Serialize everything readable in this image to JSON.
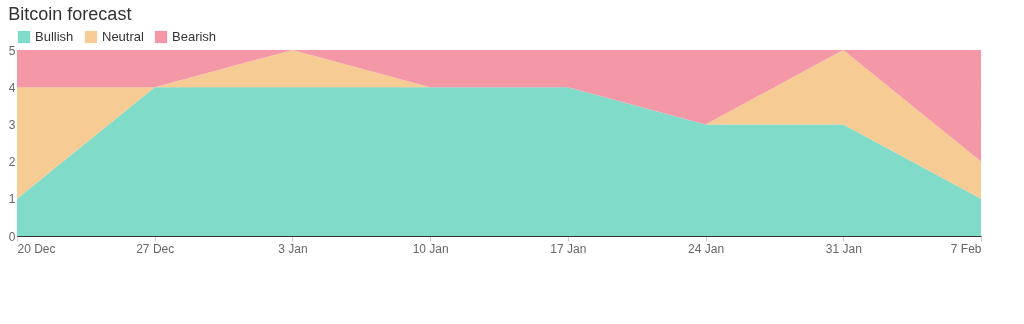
{
  "chart_data": {
    "type": "area",
    "title": "Bitcoin forecast",
    "stacked": true,
    "categories": [
      "20 Dec",
      "27 Dec",
      "3 Jan",
      "10 Jan",
      "17 Jan",
      "24 Jan",
      "31 Jan",
      "7 Feb"
    ],
    "series": [
      {
        "name": "Bullish",
        "color": "#80dbc9",
        "values": [
          1,
          4,
          4,
          4,
          4,
          3,
          3,
          1
        ]
      },
      {
        "name": "Neutral",
        "color": "#f6cb94",
        "values": [
          3,
          0,
          1,
          0,
          0,
          0,
          2,
          1
        ]
      },
      {
        "name": "Bearish",
        "color": "#f498a8",
        "values": [
          1,
          1,
          0,
          1,
          1,
          2,
          0,
          3
        ]
      }
    ],
    "ylim": [
      0,
      5
    ],
    "yticks": [
      0,
      1,
      2,
      3,
      4,
      5
    ],
    "grid": "y",
    "legend": "top left"
  }
}
